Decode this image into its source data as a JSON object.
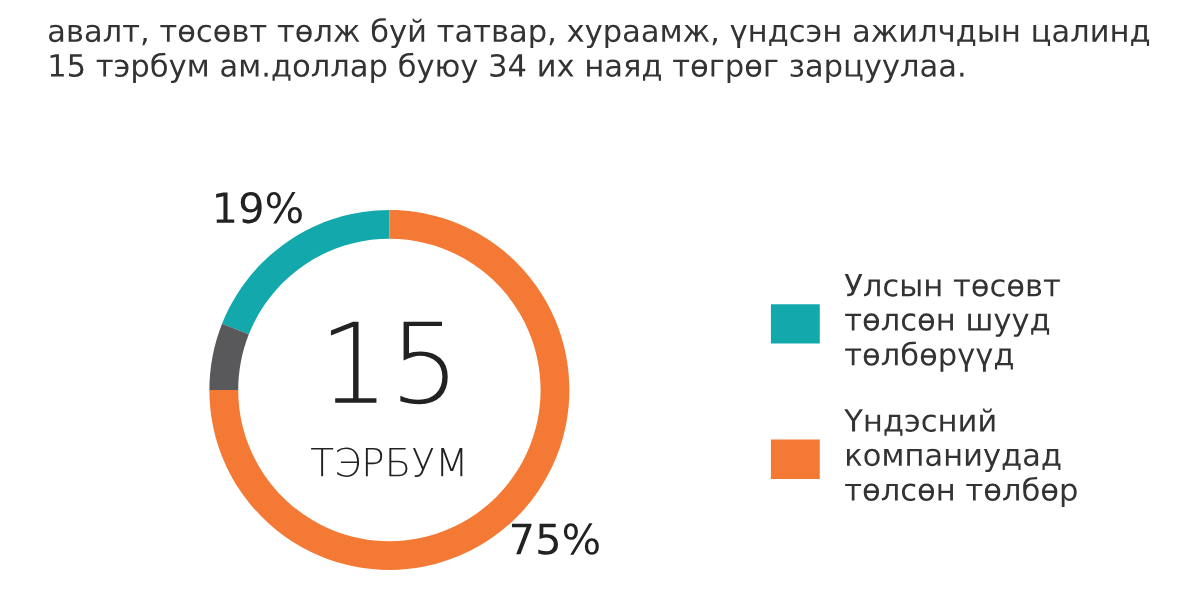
{
  "chart_data": {
    "type": "donut",
    "title": "авалт, төсөвт төлж буй татвар, хураамж, үндсэн ажилчдын цалинд 15 тэрбум ам.доллар буюу 34 их наяд төгрөг зарцуулаа.",
    "categories": [
      "Улсын төсөвт төлсөн шууд төлбөрүүд",
      "Үндэсний компаниудад төлсөн төлбөр",
      null
    ],
    "values": [
      19,
      75,
      6
    ],
    "colors": [
      "#13a9ac",
      "#f47935",
      "#59595b"
    ],
    "value_labels": [
      "19%",
      "75%",
      null
    ],
    "annotations": [
      "15",
      "ТЭРБУМ"
    ],
    "legend": "right"
  }
}
